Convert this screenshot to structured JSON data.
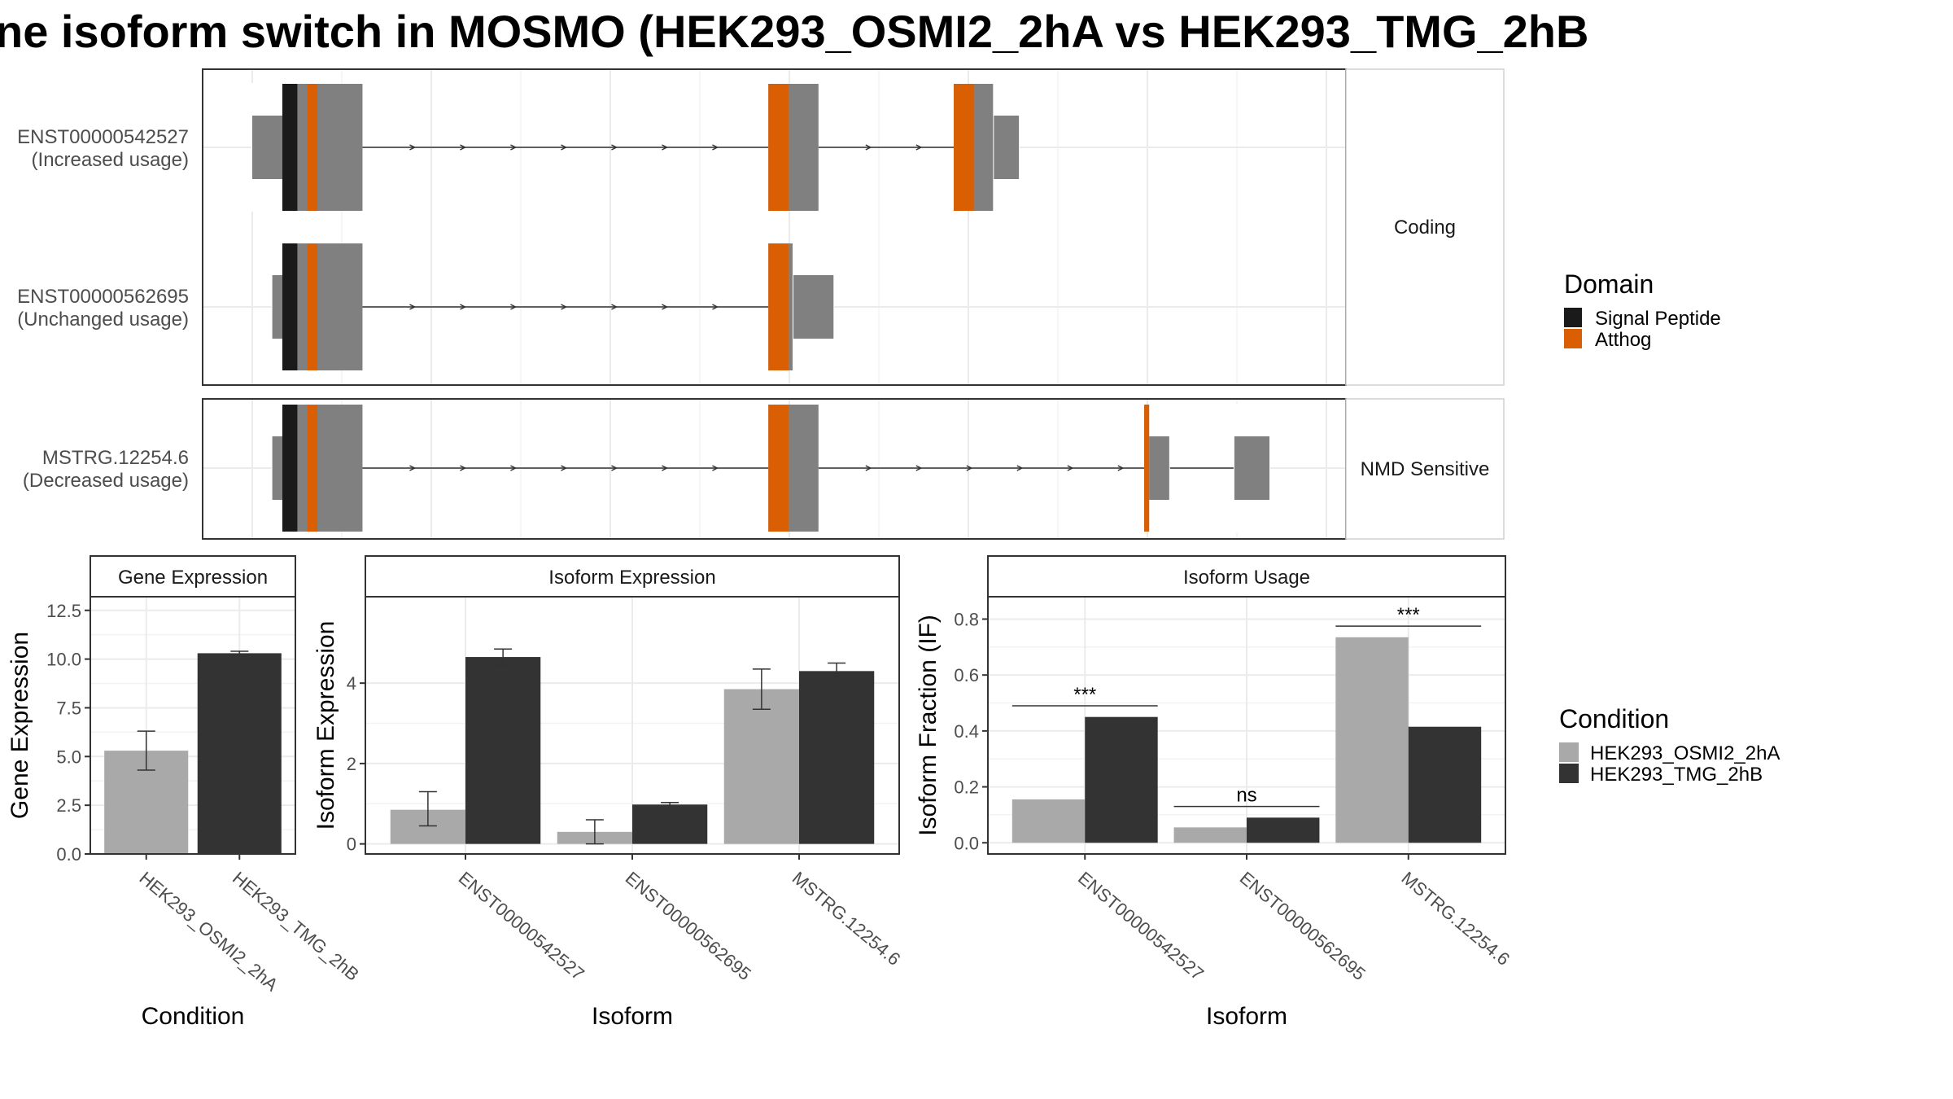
{
  "title": "ne isoform switch in MOSMO (HEK293_OSMI2_2hA vs HEK293_TMG_2hB",
  "colors": {
    "signal_peptide": "#1a1a1a",
    "atthog": "#d95f02",
    "utr": "#808080",
    "cond_a": "#a9a9a9",
    "cond_b": "#333333",
    "grid": "#ebebeb",
    "panel_border": "#333333"
  },
  "transcripts": {
    "groups": [
      {
        "strip_label": "Coding",
        "isoforms": [
          {
            "id": "ENST00000542527",
            "usage": "(Increased usage)",
            "exons": [
              [
                0,
                6
              ],
              [
                6,
                22
              ],
              [
                103,
                113
              ],
              [
                140,
                153
              ]
            ],
            "introns": [
              [
                22,
                103
              ],
              [
                113,
                140
              ]
            ],
            "utr": [
              [
                0,
                6
              ],
              [
                148,
                153
              ]
            ],
            "domains": [
              {
                "name": "Signal Peptide",
                "range": [
                  6,
                  9
                ]
              },
              {
                "name": "Atthog",
                "range": [
                  11,
                  13
                ]
              },
              {
                "name": "Atthog",
                "range": [
                  103,
                  107
                ]
              },
              {
                "name": "Atthog",
                "range": [
                  140,
                  144
                ]
              }
            ]
          },
          {
            "id": "ENST00000562695",
            "usage": "(Unchanged usage)",
            "exons": [
              [
                4,
                22
              ],
              [
                103,
                116
              ]
            ],
            "introns": [
              [
                22,
                103
              ]
            ],
            "utr": [
              [
                4,
                6
              ],
              [
                108,
                116
              ]
            ],
            "domains": [
              {
                "name": "Signal Peptide",
                "range": [
                  6,
                  9
                ]
              },
              {
                "name": "Atthog",
                "range": [
                  11,
                  13
                ]
              },
              {
                "name": "Atthog",
                "range": [
                  103,
                  107
                ]
              }
            ]
          }
        ]
      },
      {
        "strip_label": "NMD Sensitive",
        "isoforms": [
          {
            "id": "MSTRG.12254.6",
            "usage": "(Decreased usage)",
            "exons": [
              [
                4,
                22
              ],
              [
                103,
                113
              ],
              [
                178,
                183
              ],
              [
                196,
                203
              ]
            ],
            "introns": [
              [
                22,
                103
              ],
              [
                113,
                178
              ],
              [
                183,
                196
              ]
            ],
            "utr": [
              [
                4,
                6
              ],
              [
                179,
                183
              ],
              [
                196,
                203
              ]
            ],
            "domains": [
              {
                "name": "Signal Peptide",
                "range": [
                  6,
                  9
                ]
              },
              {
                "name": "Atthog",
                "range": [
                  11,
                  13
                ]
              },
              {
                "name": "Atthog",
                "range": [
                  103,
                  107
                ]
              },
              {
                "name": "Atthog",
                "range": [
                  178,
                  179
                ]
              }
            ]
          }
        ]
      }
    ]
  },
  "domain_legend": {
    "title": "Domain",
    "items": [
      "Signal Peptide",
      "Atthog"
    ]
  },
  "condition_legend": {
    "title": "Condition",
    "items": [
      "HEK293_OSMI2_2hA",
      "HEK293_TMG_2hB"
    ]
  },
  "chart_data": [
    {
      "type": "bar",
      "strip_title": "Gene Expression",
      "xlabel": "Condition",
      "ylabel": "Gene Expression",
      "categories": [
        "HEK293_OSMI2_2hA",
        "HEK293_TMG_2hB"
      ],
      "values": [
        5.3,
        10.3
      ],
      "errors": [
        [
          4.3,
          6.3
        ],
        [
          10.2,
          10.4
        ]
      ],
      "ylim": [
        0,
        13.2
      ],
      "yticks": [
        0,
        2.5,
        5,
        7.5,
        10,
        12.5
      ],
      "ytick_labels": [
        "0.0",
        "2.5",
        "5.0",
        "7.5",
        "10.0",
        "12.5"
      ]
    },
    {
      "type": "bar",
      "strip_title": "Isoform Expression",
      "xlabel": "Isoform",
      "ylabel": "Isoform Expression",
      "categories": [
        "ENST00000542527",
        "ENST00000562695",
        "MSTRG.12254.6"
      ],
      "series": [
        {
          "name": "HEK293_OSMI2_2hA",
          "values": [
            0.85,
            0.3,
            3.85
          ],
          "errors": [
            [
              0.45,
              1.3
            ],
            [
              0.0,
              0.6
            ],
            [
              3.35,
              4.35
            ]
          ]
        },
        {
          "name": "HEK293_TMG_2hB",
          "values": [
            4.65,
            0.98,
            4.3
          ],
          "errors": [
            [
              4.45,
              4.85
            ],
            [
              0.93,
              1.03
            ],
            [
              4.1,
              4.5
            ]
          ]
        }
      ],
      "ylim": [
        -0.25,
        6.15
      ],
      "yticks": [
        0,
        2,
        4
      ],
      "ytick_labels": [
        "0",
        "2",
        "4"
      ]
    },
    {
      "type": "bar",
      "strip_title": "Isoform Usage",
      "xlabel": "Isoform",
      "ylabel": "Isoform Fraction (IF)",
      "categories": [
        "ENST00000542527",
        "ENST00000562695",
        "MSTRG.12254.6"
      ],
      "series": [
        {
          "name": "HEK293_OSMI2_2hA",
          "values": [
            0.155,
            0.055,
            0.735
          ]
        },
        {
          "name": "HEK293_TMG_2hB",
          "values": [
            0.45,
            0.09,
            0.415
          ]
        }
      ],
      "significance": [
        "***",
        "ns",
        "***"
      ],
      "ylim": [
        -0.04,
        0.88
      ],
      "yticks": [
        0,
        0.2,
        0.4,
        0.6,
        0.8
      ],
      "ytick_labels": [
        "0.0",
        "0.2",
        "0.4",
        "0.6",
        "0.8"
      ]
    }
  ]
}
